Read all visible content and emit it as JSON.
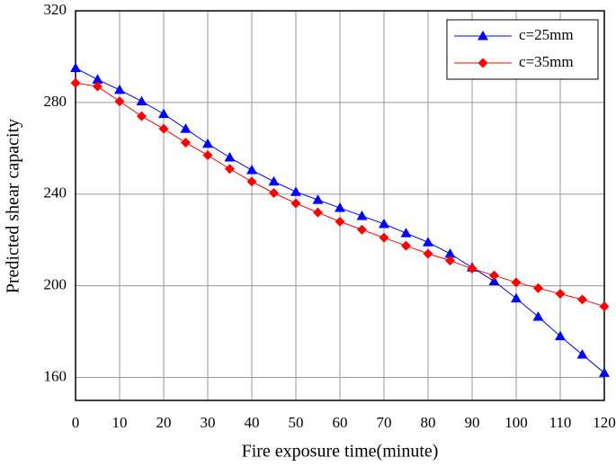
{
  "chart_data": {
    "type": "line",
    "x_label": "Fire exposure time(minute)",
    "y_label": "Predicted shear capacity",
    "x": [
      0,
      5,
      10,
      15,
      20,
      25,
      30,
      35,
      40,
      45,
      50,
      55,
      60,
      65,
      70,
      75,
      80,
      85,
      90,
      95,
      100,
      105,
      110,
      115,
      120
    ],
    "series": [
      {
        "name": "c=25mm",
        "color": "#0000ff",
        "marker": "triangle",
        "values": [
          295,
          290,
          285.5,
          280.5,
          275,
          268.5,
          262,
          256,
          250.5,
          245.5,
          241,
          237.5,
          234,
          230.5,
          227,
          223,
          219,
          214,
          208,
          202,
          194.5,
          186.5,
          178,
          170,
          162
        ]
      },
      {
        "name": "c=35mm",
        "color": "#ff0000",
        "marker": "diamond",
        "values": [
          288.5,
          287,
          280.5,
          274,
          268.5,
          262.5,
          257,
          251,
          245.5,
          240.5,
          236,
          232,
          228,
          224.5,
          221,
          217.5,
          214,
          211,
          207.5,
          204.5,
          201.5,
          199,
          196.5,
          194,
          191
        ]
      }
    ],
    "xlim": [
      0,
      120
    ],
    "xticks": [
      0,
      10,
      20,
      30,
      40,
      50,
      60,
      70,
      80,
      90,
      100,
      110,
      120
    ],
    "ylim": [
      150,
      320
    ],
    "yticks": [
      160,
      200,
      240,
      280,
      320
    ],
    "grid": true,
    "legend": "upper right"
  }
}
